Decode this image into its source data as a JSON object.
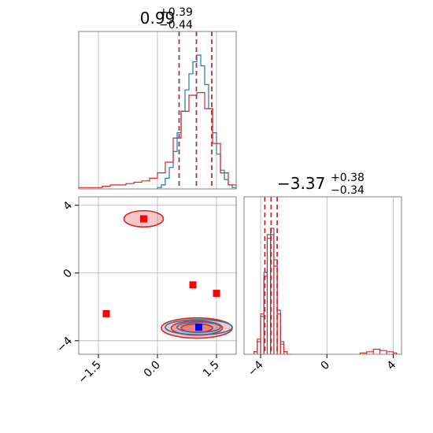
{
  "colors": {
    "blue": "#1f77b4",
    "red": "#d62728",
    "marker_red": "#ff0000",
    "marker_blue": "#0000ff",
    "grid": "#b0b0b0",
    "frame": "#808080"
  },
  "chart_data": [
    {
      "type": "histogram",
      "panel": "top-left marginal (parameter 1)",
      "title": {
        "value": "0.99",
        "sup": "+0.39",
        "sub": "−0.44"
      },
      "xlim": [
        -2.0,
        2.0
      ],
      "grid": true,
      "x_ticks": [],
      "series": [
        {
          "color": "#1f77b4",
          "dashed_lines": [
            0.55,
            0.99,
            1.38
          ],
          "bins_x": [
            0.0,
            0.1,
            0.2,
            0.3,
            0.4,
            0.5,
            0.6,
            0.7,
            0.8,
            0.9,
            1.0,
            1.1,
            1.2,
            1.3,
            1.4,
            1.5,
            1.6,
            1.7,
            1.8,
            1.9,
            2.0
          ],
          "values": [
            0.01,
            0.03,
            0.08,
            0.16,
            0.28,
            0.42,
            0.58,
            0.74,
            0.86,
            0.95,
            1.0,
            0.92,
            0.78,
            0.6,
            0.42,
            0.26,
            0.14,
            0.07,
            0.03,
            0.01
          ]
        },
        {
          "color": "#d62728",
          "dashed_lines": [
            0.55,
            0.99,
            1.38
          ],
          "bins_x": [
            -2.0,
            -1.8,
            -1.6,
            -1.4,
            -1.2,
            -1.0,
            -0.8,
            -0.6,
            -0.4,
            -0.2,
            0.0,
            0.2,
            0.4,
            0.6,
            0.8,
            1.0,
            1.2,
            1.4,
            1.6,
            1.8,
            2.0
          ],
          "values": [
            0.01,
            0.01,
            0.01,
            0.02,
            0.03,
            0.03,
            0.04,
            0.05,
            0.06,
            0.08,
            0.12,
            0.2,
            0.38,
            0.58,
            0.7,
            0.72,
            0.6,
            0.34,
            0.12,
            0.03
          ]
        }
      ]
    },
    {
      "type": "histogram",
      "panel": "bottom-right marginal (parameter 2)",
      "title": {
        "value": "−3.37",
        "sup": "+0.38",
        "sub": "−0.34"
      },
      "xlim": [
        -5.0,
        4.5
      ],
      "grid": true,
      "x_ticks": [
        "−4",
        "0",
        "4"
      ],
      "series": [
        {
          "color": "#1f77b4",
          "dashed_lines": [
            -3.75,
            -3.37,
            -3.0
          ],
          "bins_x": [
            -4.4,
            -4.2,
            -4.0,
            -3.8,
            -3.6,
            -3.4,
            -3.2,
            -3.0,
            -2.8,
            -2.6
          ],
          "values": [
            0.02,
            0.1,
            0.3,
            0.65,
            0.95,
            1.0,
            0.75,
            0.35,
            0.1,
            0.02
          ]
        },
        {
          "color": "#d62728",
          "dashed_lines": [
            -3.75,
            -3.37,
            -3.0
          ],
          "bins_x": [
            -4.4,
            -4.2,
            -4.0,
            -3.8,
            -3.6,
            -3.4,
            -3.2,
            -3.0,
            -2.8,
            -2.6,
            -2.4,
            2.0,
            2.4,
            2.8,
            3.2,
            3.6,
            4.0
          ],
          "values": [
            0.02,
            0.12,
            0.32,
            0.62,
            0.92,
            0.95,
            0.7,
            0.32,
            0.08,
            0.02,
            0.0,
            0.01,
            0.02,
            0.04,
            0.03,
            0.02,
            0.01
          ]
        }
      ]
    },
    {
      "type": "contour",
      "panel": "bottom-left joint distribution",
      "xlim": [
        -2.0,
        2.0
      ],
      "ylim": [
        -4.8,
        4.5
      ],
      "grid": true,
      "x_ticks": [
        "−1.5",
        "0.0",
        "1.5"
      ],
      "y_ticks": [
        "−4",
        "0",
        "4"
      ],
      "red_contours": [
        {
          "cx": 1.0,
          "cy": -3.25,
          "rx": 0.9,
          "ry": 0.6
        },
        {
          "cx": 1.0,
          "cy": -3.25,
          "rx": 0.65,
          "ry": 0.42
        },
        {
          "cx": 1.0,
          "cy": -3.25,
          "rx": 0.4,
          "ry": 0.25
        },
        {
          "cx": -0.35,
          "cy": 3.2,
          "rx": 0.5,
          "ry": 0.48
        }
      ],
      "blue_contours": [
        {
          "cx": 1.05,
          "cy": -3.2,
          "rx": 0.85,
          "ry": 0.45
        },
        {
          "cx": 1.05,
          "cy": -3.2,
          "rx": 0.55,
          "ry": 0.3
        }
      ],
      "red_markers": [
        [
          -1.3,
          -2.4
        ],
        [
          -0.35,
          3.2
        ],
        [
          0.9,
          -0.7
        ],
        [
          1.5,
          -1.2
        ],
        [
          1.05,
          -3.2
        ]
      ],
      "blue_marker": [
        1.05,
        -3.2
      ]
    }
  ]
}
